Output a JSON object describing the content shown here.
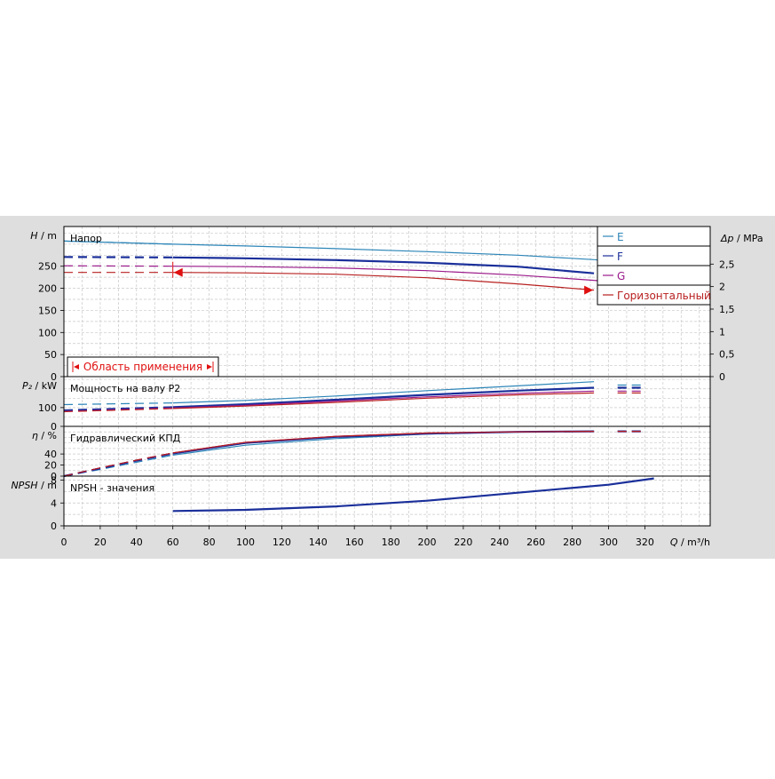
{
  "chart_data": {
    "type": "line",
    "x_axis": {
      "label_var": "Q",
      "label_unit": "/ m³/h",
      "range": [
        0,
        356
      ],
      "ticks": [
        0,
        20,
        40,
        60,
        80,
        100,
        120,
        140,
        160,
        180,
        200,
        220,
        240,
        260,
        280,
        300,
        320
      ]
    },
    "legend": {
      "placement": "top-right",
      "items": [
        {
          "key": "E",
          "label": "E",
          "color": "#2e86b8"
        },
        {
          "key": "F",
          "label": "F",
          "color": "#1a2f9a"
        },
        {
          "key": "G",
          "label": "G",
          "color": "#9a1a8a"
        },
        {
          "key": "H",
          "label": "Горизонтальный",
          "color": "#b82020"
        }
      ]
    },
    "application_range": {
      "label": "Область применения",
      "q_min": 60,
      "q_max": 292,
      "color": "#e01010"
    },
    "panels": [
      {
        "key": "head",
        "title": "Напор",
        "ylabel_var": "H",
        "ylabel_unit": "/ m",
        "ylim": [
          0,
          340
        ],
        "yticks": [
          0,
          50,
          100,
          150,
          200,
          250
        ],
        "right_axis": {
          "label_var": "Δp",
          "label_unit": "/ MPa",
          "ylim": [
            0,
            3.335
          ],
          "ticks": [
            "0",
            "0,5",
            "1",
            "1,5",
            "2",
            "2,5"
          ],
          "tick_values": [
            0,
            0.5,
            1,
            1.5,
            2,
            2.5
          ]
        },
        "series": [
          {
            "name": "E",
            "color": "#2e86b8",
            "width": 1.2,
            "solid": [
              [
                0,
                307
              ],
              [
                60,
                300
              ],
              [
                100,
                296
              ],
              [
                150,
                290
              ],
              [
                200,
                283
              ],
              [
                250,
                275
              ],
              [
                292,
                265
              ]
            ],
            "dashed": [
              [
                0,
                307
              ],
              [
                60,
                300
              ]
            ],
            "dashed_ext": [
              [
                292,
                265
              ],
              [
                295,
                264
              ],
              [
                320,
                257
              ]
            ]
          },
          {
            "name": "F",
            "color": "#1a2f9a",
            "width": 2.2,
            "solid": [
              [
                60,
                270
              ],
              [
                100,
                268
              ],
              [
                150,
                264
              ],
              [
                200,
                258
              ],
              [
                250,
                249
              ],
              [
                292,
                234
              ]
            ],
            "dashed": [
              [
                0,
                271
              ],
              [
                60,
                270
              ]
            ],
            "dashed_ext": []
          },
          {
            "name": "G",
            "color": "#9a1a8a",
            "width": 1.2,
            "solid": [
              [
                60,
                250
              ],
              [
                100,
                249
              ],
              [
                150,
                246
              ],
              [
                200,
                240
              ],
              [
                250,
                230
              ],
              [
                292,
                218
              ]
            ],
            "dashed": [
              [
                0,
                251
              ],
              [
                60,
                250
              ]
            ],
            "dashed_ext": [
              [
                292,
                218
              ],
              [
                295,
                217
              ],
              [
                320,
                212
              ]
            ]
          },
          {
            "name": "Горизонтальный",
            "color": "#b82020",
            "width": 1.2,
            "solid": [
              [
                60,
                236
              ],
              [
                100,
                235
              ],
              [
                150,
                232
              ],
              [
                200,
                224
              ],
              [
                250,
                210
              ],
              [
                292,
                196
              ]
            ],
            "dashed": [
              [
                0,
                236
              ],
              [
                60,
                236
              ]
            ],
            "dashed_ext": []
          }
        ]
      },
      {
        "key": "power",
        "title": "Мощность на валу P2",
        "ylabel_var": "P₂",
        "ylabel_unit": "/ kW",
        "ylim": [
          0,
          265
        ],
        "yticks": [
          0,
          100
        ],
        "series": [
          {
            "name": "E",
            "color": "#2e86b8",
            "width": 1.2,
            "solid": [
              [
                60,
                125
              ],
              [
                100,
                138
              ],
              [
                150,
                162
              ],
              [
                200,
                190
              ],
              [
                250,
                216
              ],
              [
                292,
                238
              ]
            ],
            "dashed": [
              [
                0,
                116
              ],
              [
                60,
                125
              ]
            ],
            "dashed_ext": [
              [
                305,
                220
              ],
              [
                320,
                220
              ]
            ]
          },
          {
            "name": "F",
            "color": "#1a2f9a",
            "width": 2.2,
            "solid": [
              [
                60,
                102
              ],
              [
                100,
                118
              ],
              [
                150,
                142
              ],
              [
                200,
                168
              ],
              [
                250,
                190
              ],
              [
                292,
                206
              ]
            ],
            "dashed": [
              [
                0,
                85
              ],
              [
                60,
                102
              ]
            ],
            "dashed_ext": [
              [
                305,
                206
              ],
              [
                320,
                206
              ]
            ]
          },
          {
            "name": "G",
            "color": "#9a1a8a",
            "width": 1.2,
            "solid": [
              [
                60,
                98
              ],
              [
                100,
                112
              ],
              [
                150,
                135
              ],
              [
                200,
                157
              ],
              [
                250,
                176
              ],
              [
                292,
                188
              ]
            ],
            "dashed": [
              [
                0,
                80
              ],
              [
                60,
                98
              ]
            ],
            "dashed_ext": [
              [
                305,
                188
              ],
              [
                320,
                188
              ]
            ]
          },
          {
            "name": "Горизонтальный",
            "color": "#b82020",
            "width": 1.2,
            "solid": [
              [
                60,
                95
              ],
              [
                100,
                108
              ],
              [
                150,
                128
              ],
              [
                200,
                150
              ],
              [
                250,
                168
              ],
              [
                292,
                178
              ]
            ],
            "dashed": [
              [
                0,
                78
              ],
              [
                60,
                95
              ]
            ],
            "dashed_ext": [
              [
                305,
                178
              ],
              [
                320,
                178
              ]
            ]
          }
        ]
      },
      {
        "key": "efficiency",
        "title": "Гидравлический КПД",
        "ylabel_var": "η",
        "ylabel_unit": "/ %",
        "ylim": [
          0,
          90
        ],
        "yticks": [
          0,
          20,
          40
        ],
        "series": [
          {
            "name": "E",
            "color": "#2e86b8",
            "width": 1.2,
            "solid": [
              [
                60,
                38
              ],
              [
                100,
                56
              ],
              [
                150,
                68
              ],
              [
                200,
                76
              ],
              [
                250,
                80
              ],
              [
                292,
                81
              ]
            ],
            "dashed": [
              [
                0,
                0
              ],
              [
                20,
                12
              ],
              [
                40,
                25
              ],
              [
                60,
                38
              ]
            ],
            "dashed_ext": [
              [
                305,
                81
              ],
              [
                320,
                81
              ]
            ]
          },
          {
            "name": "F",
            "color": "#1a2f9a",
            "width": 2.2,
            "solid": [
              [
                60,
                41
              ],
              [
                100,
                60
              ],
              [
                150,
                71
              ],
              [
                200,
                77
              ],
              [
                250,
                80
              ],
              [
                292,
                81
              ]
            ],
            "dashed": [
              [
                0,
                0
              ],
              [
                20,
                14
              ],
              [
                40,
                28
              ],
              [
                60,
                41
              ]
            ],
            "dashed_ext": [
              [
                305,
                81
              ],
              [
                320,
                81
              ]
            ]
          },
          {
            "name": "G",
            "color": "#9a1a8a",
            "width": 1.2,
            "solid": [
              [
                60,
                42
              ],
              [
                100,
                61
              ],
              [
                150,
                72
              ],
              [
                200,
                78
              ],
              [
                250,
                80
              ],
              [
                292,
                81
              ]
            ],
            "dashed": [
              [
                0,
                0
              ],
              [
                20,
                15
              ],
              [
                40,
                29
              ],
              [
                60,
                42
              ]
            ],
            "dashed_ext": [
              [
                305,
                81
              ],
              [
                320,
                81
              ]
            ]
          },
          {
            "name": "Горизонтальный",
            "color": "#b82020",
            "width": 1.2,
            "solid": [
              [
                60,
                42
              ],
              [
                100,
                61
              ],
              [
                150,
                72
              ],
              [
                200,
                78
              ],
              [
                250,
                80
              ],
              [
                292,
                81
              ]
            ],
            "dashed": [
              [
                0,
                0
              ],
              [
                20,
                15
              ],
              [
                40,
                29
              ],
              [
                60,
                42
              ]
            ],
            "dashed_ext": [
              [
                305,
                81
              ],
              [
                320,
                81
              ]
            ]
          }
        ]
      },
      {
        "key": "npsh",
        "title": "NPSH - значения",
        "ylabel_var": "NPSH",
        "ylabel_unit": "/ m",
        "ylim": [
          0,
          8.7
        ],
        "yticks": [
          0,
          4,
          8
        ],
        "series": [
          {
            "name": "F",
            "color": "#1a2f9a",
            "width": 2.2,
            "solid": [
              [
                60,
                2.6
              ],
              [
                100,
                2.8
              ],
              [
                150,
                3.4
              ],
              [
                200,
                4.4
              ],
              [
                250,
                5.8
              ],
              [
                300,
                7.2
              ],
              [
                325,
                8.3
              ]
            ],
            "dashed": [],
            "dashed_ext": []
          }
        ]
      }
    ]
  }
}
